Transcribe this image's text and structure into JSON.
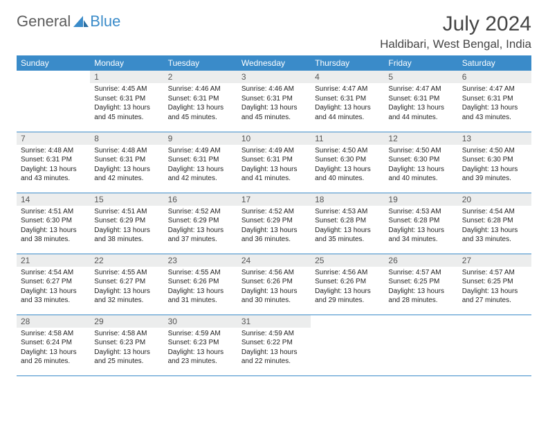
{
  "logo": {
    "part1": "General",
    "part2": "Blue"
  },
  "title": "July 2024",
  "location": "Haldibari, West Bengal, India",
  "colors": {
    "header_bg": "#3a8bc9",
    "header_fg": "#ffffff",
    "daynum_bg": "#eceded",
    "rule": "#3a8bc9",
    "logo_gray": "#5c5c5c",
    "logo_blue": "#3a8bc9"
  },
  "daynames": [
    "Sunday",
    "Monday",
    "Tuesday",
    "Wednesday",
    "Thursday",
    "Friday",
    "Saturday"
  ],
  "start_weekday": 1,
  "days": [
    {
      "n": 1,
      "sr": "4:45 AM",
      "ss": "6:31 PM",
      "dl": "13 hours and 45 minutes."
    },
    {
      "n": 2,
      "sr": "4:46 AM",
      "ss": "6:31 PM",
      "dl": "13 hours and 45 minutes."
    },
    {
      "n": 3,
      "sr": "4:46 AM",
      "ss": "6:31 PM",
      "dl": "13 hours and 45 minutes."
    },
    {
      "n": 4,
      "sr": "4:47 AM",
      "ss": "6:31 PM",
      "dl": "13 hours and 44 minutes."
    },
    {
      "n": 5,
      "sr": "4:47 AM",
      "ss": "6:31 PM",
      "dl": "13 hours and 44 minutes."
    },
    {
      "n": 6,
      "sr": "4:47 AM",
      "ss": "6:31 PM",
      "dl": "13 hours and 43 minutes."
    },
    {
      "n": 7,
      "sr": "4:48 AM",
      "ss": "6:31 PM",
      "dl": "13 hours and 43 minutes."
    },
    {
      "n": 8,
      "sr": "4:48 AM",
      "ss": "6:31 PM",
      "dl": "13 hours and 42 minutes."
    },
    {
      "n": 9,
      "sr": "4:49 AM",
      "ss": "6:31 PM",
      "dl": "13 hours and 42 minutes."
    },
    {
      "n": 10,
      "sr": "4:49 AM",
      "ss": "6:31 PM",
      "dl": "13 hours and 41 minutes."
    },
    {
      "n": 11,
      "sr": "4:50 AM",
      "ss": "6:30 PM",
      "dl": "13 hours and 40 minutes."
    },
    {
      "n": 12,
      "sr": "4:50 AM",
      "ss": "6:30 PM",
      "dl": "13 hours and 40 minutes."
    },
    {
      "n": 13,
      "sr": "4:50 AM",
      "ss": "6:30 PM",
      "dl": "13 hours and 39 minutes."
    },
    {
      "n": 14,
      "sr": "4:51 AM",
      "ss": "6:30 PM",
      "dl": "13 hours and 38 minutes."
    },
    {
      "n": 15,
      "sr": "4:51 AM",
      "ss": "6:29 PM",
      "dl": "13 hours and 38 minutes."
    },
    {
      "n": 16,
      "sr": "4:52 AM",
      "ss": "6:29 PM",
      "dl": "13 hours and 37 minutes."
    },
    {
      "n": 17,
      "sr": "4:52 AM",
      "ss": "6:29 PM",
      "dl": "13 hours and 36 minutes."
    },
    {
      "n": 18,
      "sr": "4:53 AM",
      "ss": "6:28 PM",
      "dl": "13 hours and 35 minutes."
    },
    {
      "n": 19,
      "sr": "4:53 AM",
      "ss": "6:28 PM",
      "dl": "13 hours and 34 minutes."
    },
    {
      "n": 20,
      "sr": "4:54 AM",
      "ss": "6:28 PM",
      "dl": "13 hours and 33 minutes."
    },
    {
      "n": 21,
      "sr": "4:54 AM",
      "ss": "6:27 PM",
      "dl": "13 hours and 33 minutes."
    },
    {
      "n": 22,
      "sr": "4:55 AM",
      "ss": "6:27 PM",
      "dl": "13 hours and 32 minutes."
    },
    {
      "n": 23,
      "sr": "4:55 AM",
      "ss": "6:26 PM",
      "dl": "13 hours and 31 minutes."
    },
    {
      "n": 24,
      "sr": "4:56 AM",
      "ss": "6:26 PM",
      "dl": "13 hours and 30 minutes."
    },
    {
      "n": 25,
      "sr": "4:56 AM",
      "ss": "6:26 PM",
      "dl": "13 hours and 29 minutes."
    },
    {
      "n": 26,
      "sr": "4:57 AM",
      "ss": "6:25 PM",
      "dl": "13 hours and 28 minutes."
    },
    {
      "n": 27,
      "sr": "4:57 AM",
      "ss": "6:25 PM",
      "dl": "13 hours and 27 minutes."
    },
    {
      "n": 28,
      "sr": "4:58 AM",
      "ss": "6:24 PM",
      "dl": "13 hours and 26 minutes."
    },
    {
      "n": 29,
      "sr": "4:58 AM",
      "ss": "6:23 PM",
      "dl": "13 hours and 25 minutes."
    },
    {
      "n": 30,
      "sr": "4:59 AM",
      "ss": "6:23 PM",
      "dl": "13 hours and 23 minutes."
    },
    {
      "n": 31,
      "sr": "4:59 AM",
      "ss": "6:22 PM",
      "dl": "13 hours and 22 minutes."
    }
  ],
  "labels": {
    "sunrise": "Sunrise:",
    "sunset": "Sunset:",
    "daylight": "Daylight:"
  }
}
